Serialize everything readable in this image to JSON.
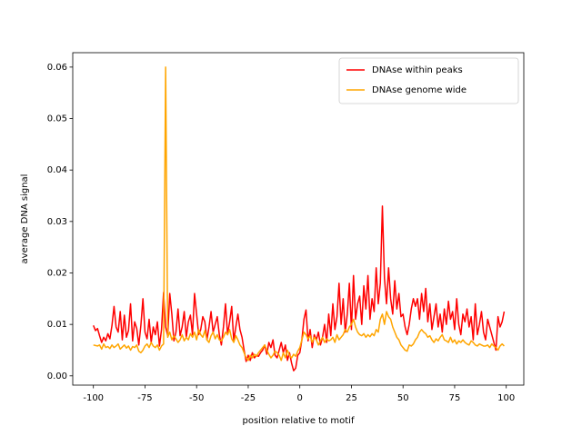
{
  "chart_data": {
    "type": "line",
    "xlabel": "position relative to motif",
    "ylabel": "average DNA signal",
    "x": [
      -100,
      -99,
      -98,
      -97,
      -96,
      -95,
      -94,
      -93,
      -92,
      -91,
      -90,
      -89,
      -88,
      -87,
      -86,
      -85,
      -84,
      -83,
      -82,
      -81,
      -80,
      -79,
      -78,
      -77,
      -76,
      -75,
      -74,
      -73,
      -72,
      -71,
      -70,
      -69,
      -68,
      -67,
      -66,
      -65,
      -64,
      -63,
      -62,
      -61,
      -60,
      -59,
      -58,
      -57,
      -56,
      -55,
      -54,
      -53,
      -52,
      -51,
      -50,
      -49,
      -48,
      -47,
      -46,
      -45,
      -44,
      -43,
      -42,
      -41,
      -40,
      -39,
      -38,
      -37,
      -36,
      -35,
      -34,
      -33,
      -32,
      -31,
      -30,
      -29,
      -28,
      -27,
      -26,
      -25,
      -24,
      -23,
      -22,
      -21,
      -20,
      -19,
      -18,
      -17,
      -16,
      -15,
      -14,
      -13,
      -12,
      -11,
      -10,
      -9,
      -8,
      -7,
      -6,
      -5,
      -4,
      -3,
      -2,
      -1,
      0,
      1,
      2,
      3,
      4,
      5,
      6,
      7,
      8,
      9,
      10,
      11,
      12,
      13,
      14,
      15,
      16,
      17,
      18,
      19,
      20,
      21,
      22,
      23,
      24,
      25,
      26,
      27,
      28,
      29,
      30,
      31,
      32,
      33,
      34,
      35,
      36,
      37,
      38,
      39,
      40,
      41,
      42,
      43,
      44,
      45,
      46,
      47,
      48,
      49,
      50,
      51,
      52,
      53,
      54,
      55,
      56,
      57,
      58,
      59,
      60,
      61,
      62,
      63,
      64,
      65,
      66,
      67,
      68,
      69,
      70,
      71,
      72,
      73,
      74,
      75,
      76,
      77,
      78,
      79,
      80,
      81,
      82,
      83,
      84,
      85,
      86,
      87,
      88,
      89,
      90,
      91,
      92,
      93,
      94,
      95,
      96,
      97,
      98,
      99
    ],
    "series": [
      {
        "name": "DNAse within peaks",
        "color": "#ff0000",
        "values": [
          0.0098,
          0.0088,
          0.0092,
          0.0078,
          0.0065,
          0.0075,
          0.0068,
          0.0082,
          0.0072,
          0.0098,
          0.0135,
          0.0095,
          0.0085,
          0.0125,
          0.007,
          0.0118,
          0.0075,
          0.0088,
          0.014,
          0.0068,
          0.0105,
          0.0092,
          0.006,
          0.0098,
          0.015,
          0.0085,
          0.0072,
          0.011,
          0.0065,
          0.0095,
          0.008,
          0.0105,
          0.0058,
          0.009,
          0.0162,
          0.0095,
          0.0078,
          0.016,
          0.012,
          0.0068,
          0.0085,
          0.013,
          0.0078,
          0.0095,
          0.0125,
          0.0075,
          0.0105,
          0.0118,
          0.008,
          0.016,
          0.012,
          0.008,
          0.009,
          0.0115,
          0.0105,
          0.007,
          0.0095,
          0.0125,
          0.0085,
          0.01,
          0.0115,
          0.008,
          0.006,
          0.0095,
          0.014,
          0.008,
          0.0105,
          0.0135,
          0.0068,
          0.0095,
          0.012,
          0.009,
          0.0075,
          0.005,
          0.0028,
          0.004,
          0.003,
          0.0045,
          0.0035,
          0.004,
          0.0038,
          0.0045,
          0.005,
          0.006,
          0.0042,
          0.0065,
          0.0055,
          0.007,
          0.004,
          0.0035,
          0.005,
          0.0065,
          0.0045,
          0.006,
          0.003,
          0.0045,
          0.0025,
          0.001,
          0.0015,
          0.004,
          0.0045,
          0.007,
          0.011,
          0.0128,
          0.0068,
          0.009,
          0.0055,
          0.008,
          0.007,
          0.0085,
          0.006,
          0.0075,
          0.01,
          0.0065,
          0.012,
          0.0078,
          0.014,
          0.009,
          0.0115,
          0.018,
          0.01,
          0.015,
          0.0085,
          0.012,
          0.018,
          0.009,
          0.0195,
          0.011,
          0.014,
          0.0155,
          0.01,
          0.0175,
          0.013,
          0.0195,
          0.011,
          0.015,
          0.0125,
          0.021,
          0.014,
          0.018,
          0.033,
          0.019,
          0.014,
          0.021,
          0.015,
          0.012,
          0.0185,
          0.013,
          0.016,
          0.0115,
          0.012,
          0.0095,
          0.008,
          0.01,
          0.013,
          0.015,
          0.0135,
          0.015,
          0.011,
          0.016,
          0.0125,
          0.017,
          0.0105,
          0.014,
          0.009,
          0.0115,
          0.014,
          0.0095,
          0.012,
          0.0085,
          0.013,
          0.01,
          0.0145,
          0.011,
          0.0125,
          0.009,
          0.015,
          0.01,
          0.008,
          0.012,
          0.0105,
          0.013,
          0.0095,
          0.0115,
          0.007,
          0.014,
          0.008,
          0.01,
          0.0125,
          0.0085,
          0.007,
          0.011,
          0.0095,
          0.008,
          0.0065,
          0.005,
          0.0115,
          0.0095,
          0.0105,
          0.0125
        ]
      },
      {
        "name": "DNAse genome wide",
        "color": "#ffa500",
        "values": [
          0.006,
          0.0059,
          0.0058,
          0.006,
          0.0052,
          0.0062,
          0.0055,
          0.0057,
          0.0053,
          0.006,
          0.0055,
          0.0058,
          0.0062,
          0.0052,
          0.0056,
          0.006,
          0.0054,
          0.0058,
          0.005,
          0.0057,
          0.0055,
          0.006,
          0.0048,
          0.0045,
          0.005,
          0.0058,
          0.0062,
          0.0055,
          0.0065,
          0.0058,
          0.0055,
          0.006,
          0.005,
          0.0058,
          0.0062,
          0.06,
          0.0075,
          0.0085,
          0.007,
          0.0078,
          0.0072,
          0.0065,
          0.007,
          0.008,
          0.0068,
          0.0075,
          0.007,
          0.0082,
          0.0075,
          0.0085,
          0.007,
          0.009,
          0.008,
          0.0075,
          0.0088,
          0.007,
          0.0065,
          0.0078,
          0.0085,
          0.0072,
          0.008,
          0.007,
          0.0068,
          0.0075,
          0.0085,
          0.008,
          0.009,
          0.0072,
          0.0065,
          0.0078,
          0.007,
          0.006,
          0.0055,
          0.0045,
          0.0035,
          0.003,
          0.004,
          0.0035,
          0.0042,
          0.0038,
          0.0045,
          0.005,
          0.0055,
          0.006,
          0.005,
          0.0042,
          0.0035,
          0.004,
          0.0048,
          0.0045,
          0.004,
          0.003,
          0.0045,
          0.0035,
          0.005,
          0.004,
          0.0035,
          0.0042,
          0.0038,
          0.0048,
          0.0055,
          0.007,
          0.0085,
          0.008,
          0.0072,
          0.0078,
          0.0065,
          0.0075,
          0.007,
          0.006,
          0.0068,
          0.0075,
          0.0065,
          0.0072,
          0.0068,
          0.007,
          0.0075,
          0.0065,
          0.008,
          0.007,
          0.0075,
          0.008,
          0.009,
          0.0085,
          0.0095,
          0.01,
          0.011,
          0.0095,
          0.0085,
          0.008,
          0.0078,
          0.0082,
          0.0075,
          0.008,
          0.0076,
          0.0082,
          0.0078,
          0.009,
          0.0085,
          0.011,
          0.012,
          0.01,
          0.0125,
          0.0115,
          0.011,
          0.0095,
          0.0085,
          0.0075,
          0.007,
          0.006,
          0.0055,
          0.005,
          0.0048,
          0.006,
          0.0058,
          0.0062,
          0.007,
          0.0075,
          0.0085,
          0.009,
          0.0085,
          0.0082,
          0.0075,
          0.0078,
          0.007,
          0.0065,
          0.0072,
          0.0068,
          0.0075,
          0.008,
          0.007,
          0.0068,
          0.0065,
          0.0075,
          0.0065,
          0.007,
          0.0062,
          0.0068,
          0.0065,
          0.007,
          0.0065,
          0.0062,
          0.006,
          0.0068,
          0.0065,
          0.006,
          0.0058,
          0.0062,
          0.006,
          0.0058,
          0.0058,
          0.006,
          0.0055,
          0.0062,
          0.0058,
          0.0055,
          0.005,
          0.0058,
          0.0062,
          0.0058
        ]
      }
    ],
    "xlim": [
      -110,
      108.5
    ],
    "xticks": [
      -100,
      -75,
      -50,
      -25,
      0,
      25,
      50,
      75,
      100
    ],
    "ylim": [
      -0.0018,
      0.0628
    ],
    "yticks": [
      {
        "value": 0,
        "label": "0.00"
      },
      0.01,
      0.02,
      0.03,
      0.04,
      0.05,
      0.06
    ],
    "legend": "upper right"
  }
}
